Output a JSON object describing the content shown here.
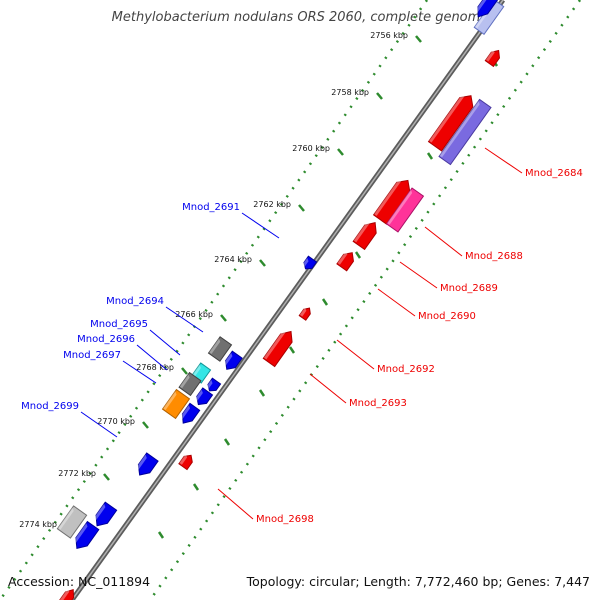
{
  "title": "Methylobacterium nodulans ORS 2060, complete genome",
  "accession": "Accession: NC_011894",
  "stats": "Topology: circular; Length: 7,772,460 bp; Genes: 7,447",
  "colors": {
    "ruler": "#2e8b2e",
    "backbone": "#808080",
    "left_label": "#0000cc",
    "right_label": "#dd0000"
  },
  "ticks": [
    {
      "label": "2756 kbp",
      "kbp": 2756
    },
    {
      "label": "2758 kbp",
      "kbp": 2758
    },
    {
      "label": "2760 kbp",
      "kbp": 2760
    },
    {
      "label": "2762 kbp",
      "kbp": 2762
    },
    {
      "label": "2764 kbp",
      "kbp": 2764
    },
    {
      "label": "2766 kbp",
      "kbp": 2766
    },
    {
      "label": "2768 kbp",
      "kbp": 2768
    },
    {
      "label": "2770 kbp",
      "kbp": 2770
    },
    {
      "label": "2772 kbp",
      "kbp": 2772
    },
    {
      "label": "2774 kbp",
      "kbp": 2774
    }
  ],
  "labeled_genes_left": [
    {
      "name": "Mnod_2691",
      "color": "#0000ee"
    },
    {
      "name": "Mnod_2694",
      "color": "#0000ee"
    },
    {
      "name": "Mnod_2695",
      "color": "#0000ee"
    },
    {
      "name": "Mnod_2696",
      "color": "#0000ee"
    },
    {
      "name": "Mnod_2697",
      "color": "#0000ee"
    },
    {
      "name": "Mnod_2699",
      "color": "#0000ee"
    }
  ],
  "labeled_genes_right": [
    {
      "name": "Mnod_2684",
      "color": "#ee0000"
    },
    {
      "name": "Mnod_2688",
      "color": "#ee0000"
    },
    {
      "name": "Mnod_2689",
      "color": "#ee0000"
    },
    {
      "name": "Mnod_2690",
      "color": "#ee0000"
    },
    {
      "name": "Mnod_2692",
      "color": "#ee0000"
    },
    {
      "name": "Mnod_2693",
      "color": "#ee0000"
    },
    {
      "name": "Mnod_2698",
      "color": "#ee0000"
    }
  ]
}
